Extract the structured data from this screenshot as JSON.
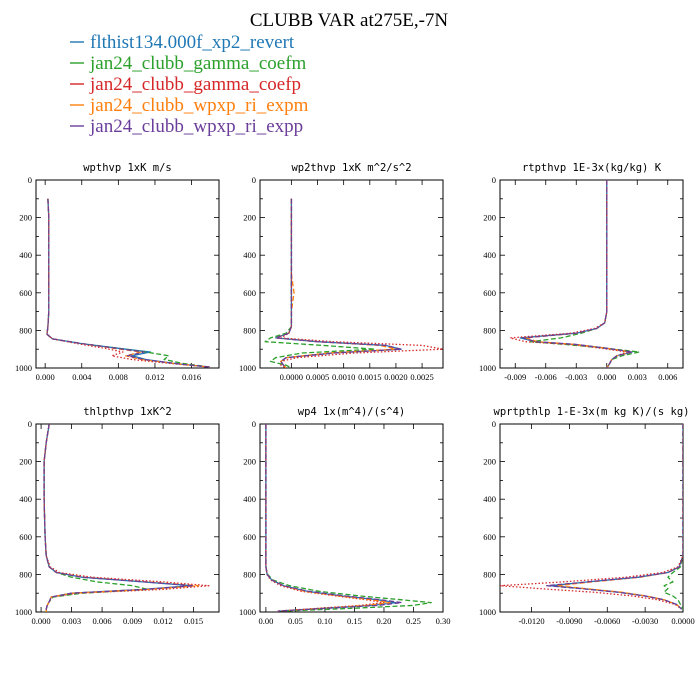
{
  "figure": {
    "title": "CLUBB VAR at275E,-7N"
  },
  "legend": [
    {
      "name": "flthist134.000f_xp2_revert",
      "color": "#1f77b4",
      "dash": "solid"
    },
    {
      "name": "jan24_clubb_gamma_coefm",
      "color": "#2ca02c",
      "dash": "dashed"
    },
    {
      "name": "jan24_clubb_gamma_coefp",
      "color": "#d62728",
      "dash": "dotted"
    },
    {
      "name": "jan24_clubb_wpxp_ri_expm",
      "color": "#ff7f0e",
      "dash": "dashed"
    },
    {
      "name": "jan24_clubb_wpxp_ri_expp",
      "color": "#6a3d9a",
      "dash": "dashed"
    }
  ],
  "chart_data": [
    {
      "type": "line",
      "title": "wpthvp  1xK m/s",
      "xlim": [
        -0.001,
        0.019
      ],
      "ylim": [
        1000,
        0
      ],
      "xticks": [
        "0.000",
        "0.004",
        "0.008",
        "0.012",
        "0.016"
      ],
      "xtick_values": [
        0,
        0.004,
        0.008,
        0.012,
        0.016
      ],
      "yticks": [
        "0",
        "200",
        "400",
        "600",
        "800",
        "1000"
      ],
      "y": [
        100,
        200,
        300,
        400,
        500,
        600,
        700,
        780,
        820,
        845,
        870,
        895,
        915,
        935,
        955,
        975,
        995
      ],
      "series": [
        {
          "values": [
            0.0003,
            0.0004,
            0.0004,
            0.0004,
            0.0004,
            0.0004,
            0.0004,
            0.0003,
            0.0002,
            0.0008,
            0.004,
            0.008,
            0.0115,
            0.0095,
            0.011,
            0.014,
            0.018
          ]
        },
        {
          "values": [
            0.0003,
            0.0004,
            0.0004,
            0.0004,
            0.0004,
            0.0004,
            0.0004,
            0.0003,
            0.0002,
            0.0008,
            0.004,
            0.008,
            0.011,
            0.0135,
            0.013,
            0.015,
            0.018
          ]
        },
        {
          "values": [
            0.0003,
            0.0004,
            0.0004,
            0.0004,
            0.0004,
            0.0004,
            0.0004,
            0.0003,
            0.0002,
            0.0008,
            0.0035,
            0.0065,
            0.0085,
            0.0073,
            0.0095,
            0.0135,
            0.018
          ]
        },
        {
          "values": [
            0.0003,
            0.0004,
            0.0004,
            0.0004,
            0.0004,
            0.0004,
            0.0004,
            0.0003,
            0.0002,
            0.0008,
            0.004,
            0.0075,
            0.0105,
            0.0088,
            0.0105,
            0.014,
            0.018
          ]
        },
        {
          "values": [
            0.0003,
            0.0004,
            0.0004,
            0.0004,
            0.0004,
            0.0004,
            0.0004,
            0.0003,
            0.0002,
            0.0008,
            0.004,
            0.0078,
            0.0108,
            0.009,
            0.0108,
            0.014,
            0.018
          ]
        }
      ]
    },
    {
      "type": "line",
      "title": "wp2thvp  1xK m^2/s^2",
      "xlim": [
        -0.0006,
        0.0029
      ],
      "ylim": [
        1000,
        0
      ],
      "xticks": [
        "0.0000",
        "0.0005",
        "0.0010",
        "0.0015",
        "0.0020",
        "0.0025"
      ],
      "xtick_values": [
        0,
        0.0005,
        0.001,
        0.0015,
        0.002,
        0.0025
      ],
      "yticks": [
        "0",
        "200",
        "400",
        "600",
        "800",
        "1000"
      ],
      "y": [
        100,
        200,
        300,
        400,
        500,
        600,
        700,
        780,
        815,
        840,
        860,
        880,
        900,
        920,
        945,
        965,
        985,
        1000
      ],
      "series": [
        {
          "values": [
            0,
            0,
            0,
            0,
            0,
            0,
            0,
            0,
            -5e-05,
            -0.0003,
            0.0005,
            0.0018,
            0.0021,
            0.0008,
            -0.0001,
            -0.0002,
            -0.00015,
            -0.0001
          ]
        },
        {
          "values": [
            0,
            0,
            0,
            0,
            0,
            0,
            0,
            0,
            -0.0001,
            -0.0004,
            -0.0005,
            0.0006,
            0.0016,
            0.0002,
            -0.0003,
            -0.0004,
            -0.0001,
            0
          ]
        },
        {
          "values": [
            0,
            0,
            0,
            0,
            0,
            0,
            0,
            0,
            -5e-05,
            -0.0002,
            0.0008,
            0.0025,
            0.0029,
            0.0012,
            0.0001,
            -0.0002,
            -0.0002,
            -0.0001
          ]
        },
        {
          "values": [
            0,
            0,
            0,
            0,
            0,
            5e-05,
            0,
            0,
            -5e-05,
            -0.0003,
            0.0005,
            0.0017,
            0.002,
            0.0007,
            -0.0001,
            -0.0002,
            -0.00015,
            -0.0001
          ]
        },
        {
          "values": [
            0,
            0,
            0,
            0,
            0,
            0,
            0,
            0,
            -5e-05,
            -0.0003,
            0.0005,
            0.0018,
            0.0021,
            0.0008,
            -0.0001,
            -0.0002,
            -0.00015,
            -0.0001
          ]
        }
      ]
    },
    {
      "type": "line",
      "title": "rtpthvp  1E-3x(kg/kg) K",
      "xlim": [
        -0.0105,
        0.0075
      ],
      "ylim": [
        1000,
        0
      ],
      "xticks": [
        "-0.009",
        "-0.006",
        "-0.003",
        "0.000",
        "0.003",
        "0.006"
      ],
      "xtick_values": [
        -0.009,
        -0.006,
        -0.003,
        0,
        0.003,
        0.006
      ],
      "yticks": [
        "0",
        "200",
        "400",
        "600",
        "800",
        "1000"
      ],
      "y": [
        0,
        200,
        400,
        600,
        700,
        760,
        790,
        815,
        840,
        860,
        875,
        895,
        915,
        935,
        955,
        975,
        1000
      ],
      "series": [
        {
          "values": [
            0,
            0,
            0,
            0,
            0,
            -0.0002,
            -0.001,
            -0.003,
            -0.0085,
            -0.007,
            -0.003,
            0,
            0.0025,
            0.001,
            0.0005,
            0.0003,
            0
          ]
        },
        {
          "values": [
            0,
            0,
            0,
            0,
            0,
            -0.0002,
            -0.001,
            -0.0025,
            -0.0045,
            -0.0075,
            -0.004,
            0,
            0.0032,
            0.0015,
            0.0005,
            0.0003,
            0
          ]
        },
        {
          "values": [
            0,
            0,
            0,
            0,
            0,
            -0.0002,
            -0.0012,
            -0.0035,
            -0.0095,
            -0.008,
            -0.0035,
            -0.0005,
            0.002,
            0.001,
            0.0005,
            0.0003,
            0
          ]
        },
        {
          "values": [
            0,
            0,
            0,
            0,
            0,
            -0.0002,
            -0.001,
            -0.003,
            -0.008,
            -0.0068,
            -0.003,
            0,
            0.0024,
            0.001,
            0.0005,
            0.0003,
            0
          ]
        },
        {
          "values": [
            0,
            0,
            0,
            0,
            0,
            -0.0002,
            -0.001,
            -0.003,
            -0.0082,
            -0.007,
            -0.003,
            0,
            0.0025,
            0.001,
            0.0005,
            0.0003,
            0
          ]
        }
      ]
    },
    {
      "type": "line",
      "title": "thlpthvp  1xK^2",
      "xlim": [
        -0.0005,
        0.0175
      ],
      "ylim": [
        1000,
        0
      ],
      "xticks": [
        "0.000",
        "0.003",
        "0.006",
        "0.009",
        "0.012",
        "0.015"
      ],
      "xtick_values": [
        0,
        0.003,
        0.006,
        0.009,
        0.012,
        0.015
      ],
      "yticks": [
        "0",
        "200",
        "400",
        "600",
        "800",
        "1000"
      ],
      "y": [
        0,
        100,
        200,
        400,
        600,
        700,
        760,
        790,
        815,
        840,
        860,
        880,
        900,
        920,
        945,
        965,
        985,
        1000
      ],
      "series": [
        {
          "values": [
            0.0008,
            0.0005,
            0.0003,
            0.0003,
            0.0004,
            0.0005,
            0.0008,
            0.0015,
            0.004,
            0.01,
            0.0148,
            0.01,
            0.003,
            0.001,
            0.0008,
            0.0006,
            0.0005,
            0.0005
          ]
        },
        {
          "values": [
            0.0008,
            0.0005,
            0.0003,
            0.0003,
            0.0004,
            0.0005,
            0.0008,
            0.0015,
            0.003,
            0.0055,
            0.009,
            0.0105,
            0.004,
            0.0012,
            0.0008,
            0.0006,
            0.0005,
            0.0005
          ]
        },
        {
          "values": [
            0.0008,
            0.0005,
            0.0003,
            0.0003,
            0.0004,
            0.0005,
            0.0009,
            0.0018,
            0.005,
            0.012,
            0.0165,
            0.012,
            0.0035,
            0.001,
            0.0008,
            0.0006,
            0.0005,
            0.0005
          ]
        },
        {
          "values": [
            0.0008,
            0.0005,
            0.0003,
            0.0003,
            0.0004,
            0.0005,
            0.0008,
            0.0015,
            0.0042,
            0.0105,
            0.0155,
            0.0105,
            0.003,
            0.001,
            0.0008,
            0.0006,
            0.0005,
            0.0005
          ]
        },
        {
          "values": [
            0.0008,
            0.0005,
            0.0003,
            0.0003,
            0.0004,
            0.0005,
            0.0008,
            0.0015,
            0.004,
            0.0102,
            0.015,
            0.0102,
            0.003,
            0.001,
            0.0008,
            0.0006,
            0.0005,
            0.0005
          ]
        }
      ]
    },
    {
      "type": "line",
      "title": "wp4  1x(m^4)/(s^4)",
      "xlim": [
        -0.01,
        0.3
      ],
      "ylim": [
        1000,
        0
      ],
      "xticks": [
        "0.00",
        "0.05",
        "0.10",
        "0.15",
        "0.20",
        "0.25",
        "0.30"
      ],
      "xtick_values": [
        0,
        0.05,
        0.1,
        0.15,
        0.2,
        0.25,
        0.3
      ],
      "yticks": [
        "0",
        "200",
        "400",
        "600",
        "800",
        "1000"
      ],
      "y": [
        0,
        200,
        400,
        600,
        700,
        760,
        800,
        830,
        860,
        890,
        915,
        935,
        950,
        965,
        980,
        995
      ],
      "series": [
        {
          "values": [
            0,
            0,
            0,
            0,
            0,
            0,
            0.002,
            0.01,
            0.03,
            0.07,
            0.13,
            0.19,
            0.22,
            0.18,
            0.1,
            0.02
          ]
        },
        {
          "values": [
            0,
            0,
            0,
            0,
            0,
            0,
            0.003,
            0.012,
            0.04,
            0.09,
            0.16,
            0.23,
            0.28,
            0.25,
            0.15,
            0.03
          ]
        },
        {
          "values": [
            0,
            0,
            0,
            0,
            0,
            0,
            0.002,
            0.008,
            0.025,
            0.06,
            0.12,
            0.17,
            0.2,
            0.16,
            0.09,
            0.02
          ]
        },
        {
          "values": [
            0,
            0,
            0,
            0,
            0,
            0,
            0.002,
            0.01,
            0.03,
            0.065,
            0.125,
            0.18,
            0.21,
            0.17,
            0.1,
            0.02
          ]
        },
        {
          "values": [
            0,
            0,
            0,
            0,
            0,
            0,
            0.002,
            0.01,
            0.03,
            0.072,
            0.135,
            0.195,
            0.23,
            0.19,
            0.105,
            0.02
          ]
        }
      ]
    },
    {
      "type": "line",
      "title": "wprtpthlp  1-E-3x(m kg K)/(s kg)",
      "xlim": [
        -0.0145,
        0.0
      ],
      "ylim": [
        1000,
        0
      ],
      "xticks": [
        "-0.0120",
        "-0.0090",
        "-0.0060",
        "-0.0030",
        "0.0000"
      ],
      "xtick_values": [
        -0.012,
        -0.009,
        -0.006,
        -0.003,
        0
      ],
      "yticks": [
        "0",
        "200",
        "400",
        "600",
        "800",
        "1000"
      ],
      "y": [
        0,
        200,
        400,
        600,
        700,
        760,
        790,
        815,
        840,
        860,
        875,
        895,
        915,
        935,
        960,
        985
      ],
      "series": [
        {
          "values": [
            0,
            0,
            0,
            0,
            0,
            -0.0003,
            -0.0012,
            -0.0035,
            -0.0075,
            -0.0105,
            -0.008,
            -0.005,
            -0.003,
            -0.0015,
            -0.0005,
            -0.0001
          ]
        },
        {
          "values": [
            0,
            0,
            0,
            0,
            0,
            -0.0002,
            -0.0008,
            -0.0012,
            -0.0008,
            -0.0015,
            -0.0012,
            -0.0015,
            -0.0008,
            -0.0004,
            -0.0002,
            0
          ]
        },
        {
          "values": [
            0,
            0,
            0,
            0,
            0,
            -0.0004,
            -0.0016,
            -0.0045,
            -0.0095,
            -0.0145,
            -0.0115,
            -0.007,
            -0.004,
            -0.002,
            -0.0006,
            -0.0001
          ]
        },
        {
          "values": [
            0,
            0,
            0,
            0,
            0,
            -0.0003,
            -0.0012,
            -0.0034,
            -0.0072,
            -0.01,
            -0.0078,
            -0.0048,
            -0.0029,
            -0.0015,
            -0.0005,
            -0.0001
          ]
        },
        {
          "values": [
            0,
            0,
            0,
            0,
            0,
            -0.0003,
            -0.0012,
            -0.0036,
            -0.0076,
            -0.0108,
            -0.0082,
            -0.0051,
            -0.003,
            -0.0015,
            -0.0005,
            -0.0001
          ]
        }
      ]
    }
  ]
}
